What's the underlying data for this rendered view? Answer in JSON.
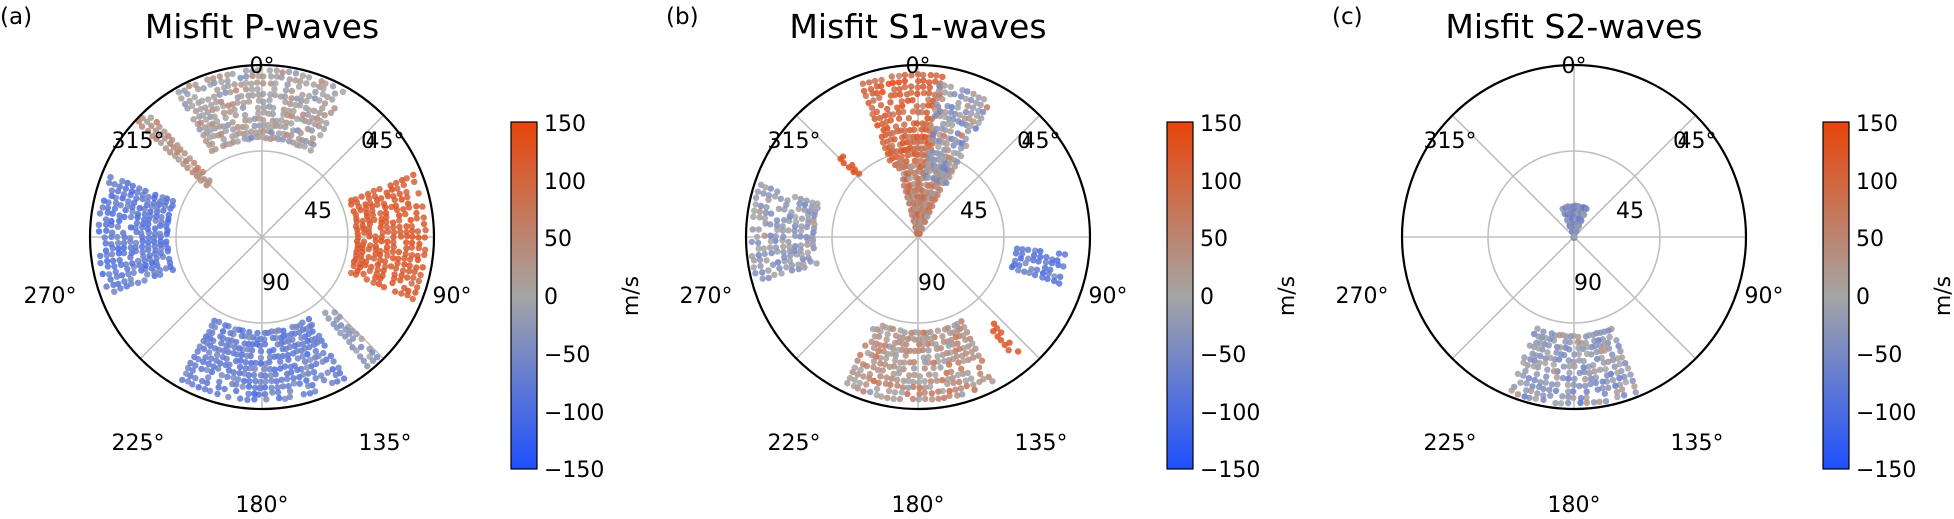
{
  "colors": {
    "low": "#1e50ff",
    "mid": "#a5a5a5",
    "high": "#e8440a",
    "grid": "#c0c0c0",
    "frame": "#000000"
  },
  "chart_data": [
    {
      "type": "scatter",
      "projection": "polar",
      "panel_label": "(a)",
      "title": "Misfit P-waves",
      "theta_labels": [
        "0°",
        "45°",
        "90°",
        "135°",
        "180°",
        "225°",
        "270°",
        "315°"
      ],
      "r_labels": [
        "0",
        "45",
        "90"
      ],
      "r_range": [
        0,
        90
      ],
      "colorbar": {
        "label": "m/s",
        "range": [
          -150,
          150
        ],
        "ticks": [
          "150",
          "100",
          "50",
          "0",
          "−50",
          "−100",
          "−150"
        ]
      },
      "clusters": [
        {
          "az": [
            330,
            30
          ],
          "r": [
            52,
            88
          ],
          "mean": 5,
          "spread": 40
        },
        {
          "az": [
            313,
            318
          ],
          "r": [
            40,
            88
          ],
          "mean": 35,
          "spread": 30
        },
        {
          "az": [
            250,
            292
          ],
          "r": [
            50,
            88
          ],
          "mean": -80,
          "spread": 30
        },
        {
          "az": [
            68,
            112
          ],
          "r": [
            50,
            88
          ],
          "mean": 115,
          "spread": 22
        },
        {
          "az": [
            136,
            141
          ],
          "r": [
            52,
            88
          ],
          "mean": -30,
          "spread": 30
        },
        {
          "az": [
            150,
            210
          ],
          "r": [
            50,
            88
          ],
          "mean": -70,
          "spread": 30
        }
      ]
    },
    {
      "type": "scatter",
      "projection": "polar",
      "panel_label": "(b)",
      "title": "Misfit S1-waves",
      "theta_labels": [
        "0°",
        "45°",
        "90°",
        "135°",
        "180°",
        "225°",
        "270°",
        "315°"
      ],
      "r_labels": [
        "0",
        "45",
        "90"
      ],
      "r_range": [
        0,
        90
      ],
      "colorbar": {
        "label": "m/s",
        "range": [
          -150,
          150
        ],
        "ticks": [
          "150",
          "100",
          "50",
          "0",
          "−50",
          "−100",
          "−150"
        ]
      },
      "clusters": [
        {
          "az": [
            345,
            25
          ],
          "r": [
            2,
            40
          ],
          "mean": 50,
          "spread": 60
        },
        {
          "az": [
            340,
            10
          ],
          "r": [
            40,
            85
          ],
          "mean": 100,
          "spread": 45
        },
        {
          "az": [
            8,
            28
          ],
          "r": [
            32,
            80
          ],
          "mean": -10,
          "spread": 60
        },
        {
          "az": [
            315,
            318
          ],
          "r": [
            45,
            60
          ],
          "mean": 130,
          "spread": 10
        },
        {
          "az": [
            255,
            290
          ],
          "r": [
            55,
            88
          ],
          "mean": -20,
          "spread": 45
        },
        {
          "az": [
            97,
            110
          ],
          "r": [
            52,
            78
          ],
          "mean": -80,
          "spread": 30
        },
        {
          "az": [
            139,
            143
          ],
          "r": [
            60,
            80
          ],
          "mean": 125,
          "spread": 10
        },
        {
          "az": [
            153,
            207
          ],
          "r": [
            50,
            88
          ],
          "mean": 30,
          "spread": 50
        }
      ]
    },
    {
      "type": "scatter",
      "projection": "polar",
      "panel_label": "(c)",
      "title": "Misfit S2-waves",
      "theta_labels": [
        "0°",
        "45°",
        "90°",
        "135°",
        "180°",
        "225°",
        "270°",
        "315°"
      ],
      "r_labels": [
        "0",
        "45",
        "90"
      ],
      "r_range": [
        0,
        90
      ],
      "colorbar": {
        "label": "m/s",
        "range": [
          -150,
          150
        ],
        "ticks": [
          "150",
          "100",
          "50",
          "0",
          "−50",
          "−100",
          "−150"
        ]
      },
      "clusters": [
        {
          "az": [
            338,
            25
          ],
          "r": [
            0,
            16
          ],
          "mean": -40,
          "spread": 50
        },
        {
          "az": [
            158,
            202
          ],
          "r": [
            52,
            88
          ],
          "mean": -20,
          "spread": 50
        }
      ]
    }
  ]
}
